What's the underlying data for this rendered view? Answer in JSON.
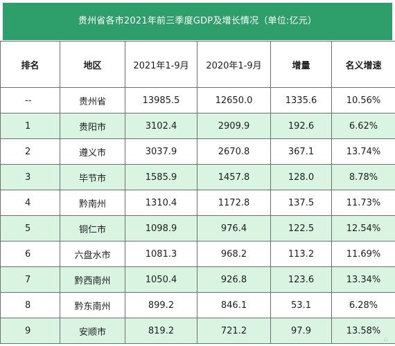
{
  "title": "贵州省各市2021年前三季度GDP及增长情况（单位:亿元）",
  "headers": {
    "rank": "排名",
    "region": "地区",
    "y2021": "2021年1-9月",
    "y2020": "2020年1-9月",
    "increase": "增量",
    "rate": "名义增速"
  },
  "rows": [
    {
      "rank": "--",
      "region": "贵州省",
      "y2021": "13985.5",
      "y2020": "12650.0",
      "increase": "1335.6",
      "rate": "10.56%"
    },
    {
      "rank": "1",
      "region": "贵阳市",
      "y2021": "3102.4",
      "y2020": "2909.9",
      "increase": "192.6",
      "rate": "6.62%"
    },
    {
      "rank": "2",
      "region": "遵义市",
      "y2021": "3037.9",
      "y2020": "2670.8",
      "increase": "367.1",
      "rate": "13.74%"
    },
    {
      "rank": "3",
      "region": "毕节市",
      "y2021": "1585.9",
      "y2020": "1457.8",
      "increase": "128.0",
      "rate": "8.78%"
    },
    {
      "rank": "4",
      "region": "黔南州",
      "y2021": "1310.4",
      "y2020": "1172.8",
      "increase": "137.5",
      "rate": "11.73%"
    },
    {
      "rank": "5",
      "region": "铜仁市",
      "y2021": "1098.9",
      "y2020": "976.4",
      "increase": "122.5",
      "rate": "12.54%"
    },
    {
      "rank": "6",
      "region": "六盘水市",
      "y2021": "1081.3",
      "y2020": "968.2",
      "increase": "113.2",
      "rate": "11.69%"
    },
    {
      "rank": "7",
      "region": "黔西南州",
      "y2021": "1050.4",
      "y2020": "926.8",
      "increase": "123.6",
      "rate": "13.34%"
    },
    {
      "rank": "8",
      "region": "黔东南州",
      "y2021": "899.2",
      "y2020": "846.1",
      "increase": "53.1",
      "rate": "6.28%"
    },
    {
      "rank": "9",
      "region": "安顺市",
      "y2021": "819.2",
      "y2020": "721.2",
      "increase": "97.9",
      "rate": "13.58%"
    }
  ],
  "colors": {
    "title_bg": "#2e9e6b",
    "row_tint": "#d9f5e2",
    "border": "#6e6e6e"
  }
}
